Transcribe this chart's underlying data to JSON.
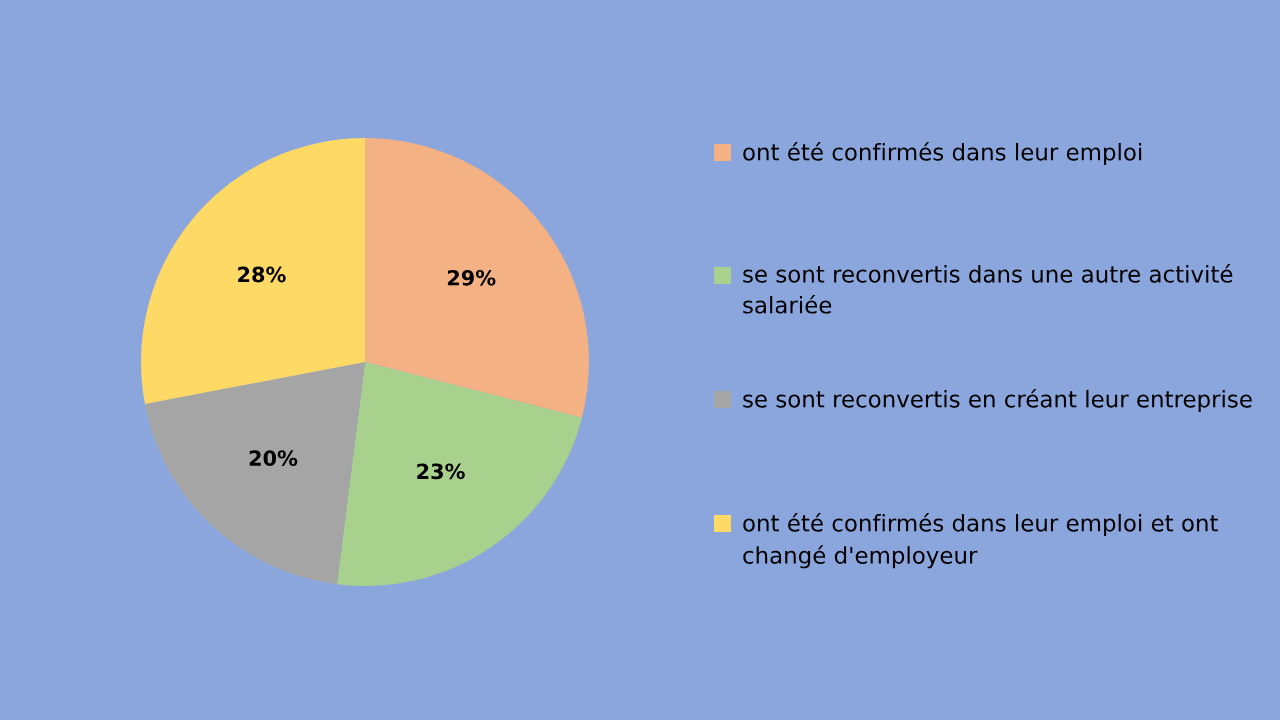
{
  "chart_data": {
    "type": "pie",
    "categories": [
      "ont été confirmés dans leur emploi",
      "se sont reconvertis dans une autre activité salariée",
      "se sont reconvertis en créant leur entreprise",
      "ont été confirmés dans leur emploi et ont changé d'employeur"
    ],
    "values": [
      29,
      23,
      20,
      28
    ],
    "colors": [
      "#f4b183",
      "#a9d18e",
      "#a5a5a5",
      "#ffd966"
    ],
    "value_labels": [
      "29%",
      "23%",
      "20%",
      "28%"
    ],
    "legend": "right"
  }
}
